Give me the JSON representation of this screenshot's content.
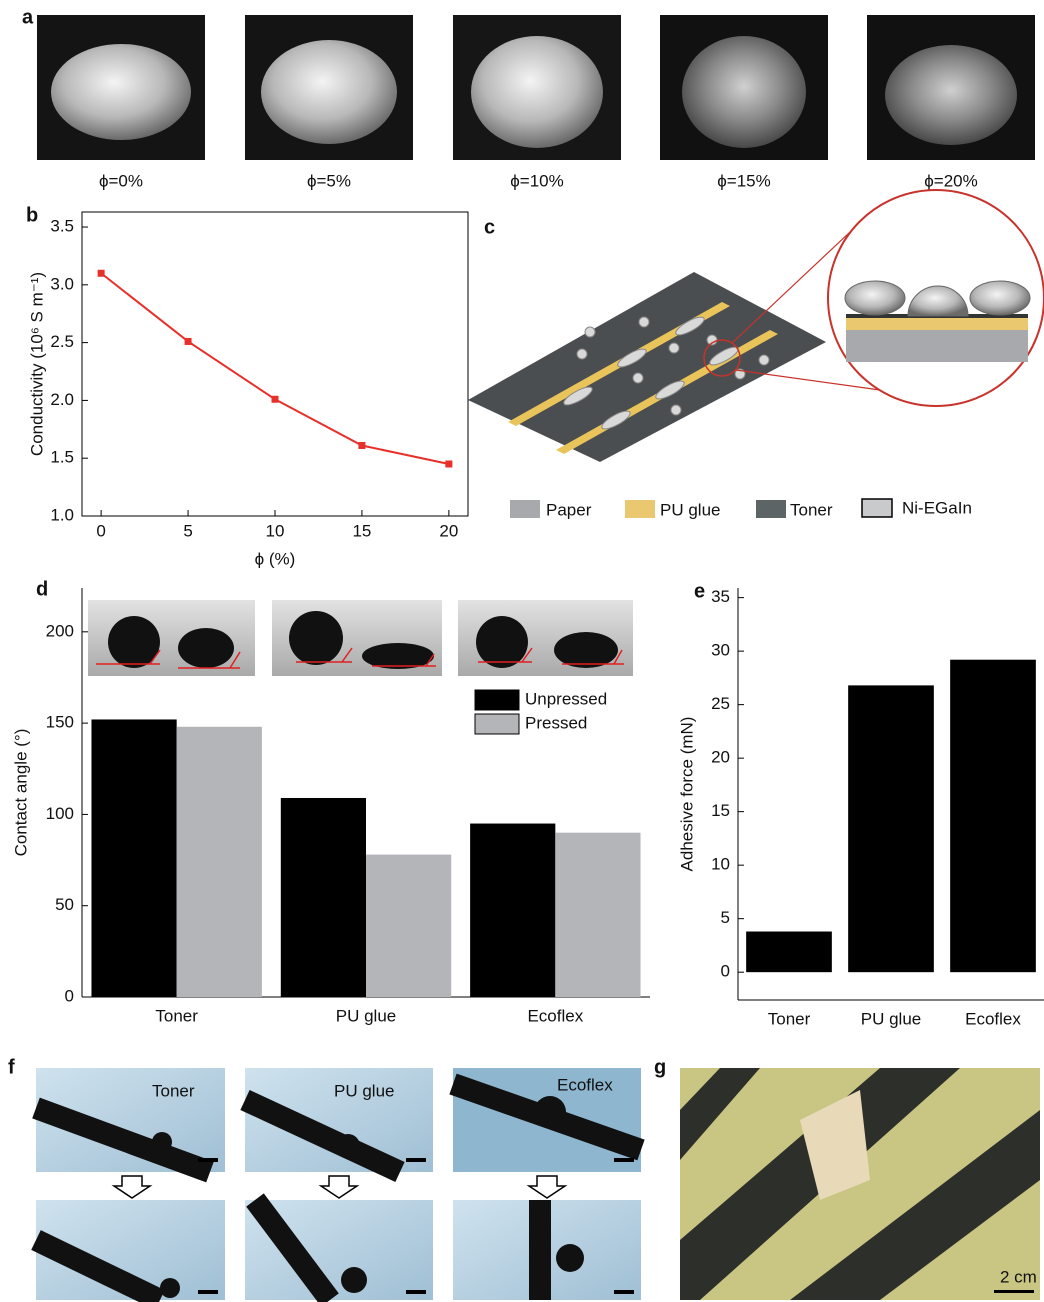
{
  "panels": {
    "a": {
      "letter": "a",
      "labels": [
        "ϕ=0%",
        "ϕ=5%",
        "ϕ=10%",
        "ϕ=15%",
        "ϕ=20%"
      ]
    },
    "b": {
      "letter": "b"
    },
    "c": {
      "letter": "c",
      "legend": [
        "Paper",
        "PU glue",
        "Toner",
        "Ni-EGaIn"
      ]
    },
    "d": {
      "letter": "d"
    },
    "e": {
      "letter": "e"
    },
    "f": {
      "letter": "f",
      "labels": [
        "Toner",
        "PU glue",
        "Ecoflex"
      ]
    },
    "g": {
      "letter": "g",
      "scale_bar": "2 cm"
    }
  },
  "chart_data": [
    {
      "type": "line",
      "x_label": "ϕ (%)",
      "y_label": "Conductivity (10⁶ S m⁻¹)",
      "x": [
        0,
        5,
        10,
        15,
        20
      ],
      "values": [
        3.1,
        2.51,
        2.01,
        1.61,
        1.45
      ],
      "color": "#e8302a",
      "xlim": [
        -1.1,
        21.1
      ],
      "ylim": [
        1.0,
        3.63
      ],
      "xticks": [
        0,
        5,
        10,
        15,
        20
      ],
      "yticks": [
        {
          "value": 1,
          "label": "1.0"
        },
        {
          "value": 1.5,
          "label": "1.5"
        },
        {
          "value": 2,
          "label": "2.0"
        },
        {
          "value": 2.5,
          "label": "2.5"
        },
        {
          "value": 3,
          "label": "3.0"
        },
        {
          "value": 3.5,
          "label": "3.5"
        }
      ]
    },
    {
      "type": "grouped_bar",
      "y_label": "Contact angle (°)",
      "categories": [
        "Toner",
        "PU glue",
        "Ecoflex"
      ],
      "series": [
        {
          "name": "Unpressed",
          "color": "#000000",
          "values": [
            152,
            109,
            95
          ]
        },
        {
          "name": "Pressed",
          "color": "#b4b5b8",
          "values": [
            148,
            78,
            90
          ]
        }
      ],
      "ylim": [
        0,
        224
      ],
      "yticks": [
        0,
        50,
        100,
        150,
        200
      ],
      "legend": "upper right"
    },
    {
      "type": "bar",
      "y_label": "Adhesive force (mN)",
      "categories": [
        "Toner",
        "PU glue",
        "Ecoflex"
      ],
      "values": [
        3.8,
        26.8,
        29.2
      ],
      "color": "#000000",
      "ylim": [
        -2.6,
        35.9
      ],
      "yticks": [
        0,
        5,
        10,
        15,
        20,
        25,
        30,
        35
      ]
    }
  ]
}
